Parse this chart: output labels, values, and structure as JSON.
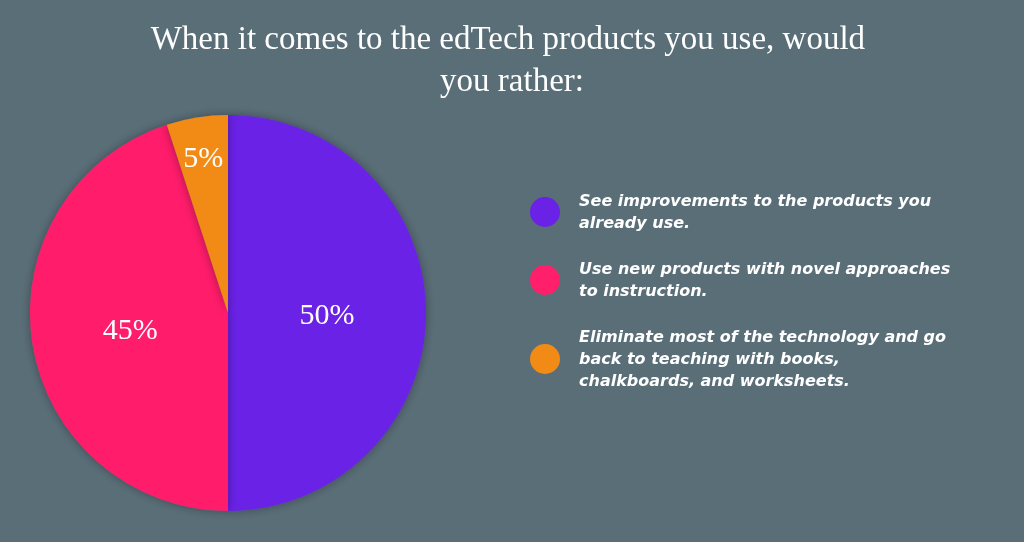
{
  "chart_data": {
    "type": "pie",
    "title": "When it comes to the edTech products you use, would you rather:",
    "categories": [
      "See improvements to the products you already use.",
      "Use new products with novel approaches to instruction.",
      "Eliminate most of the technology and go back to teaching with books, chalkboards, and worksheets."
    ],
    "values": [
      50,
      45,
      5
    ],
    "value_labels": [
      "50%",
      "45%",
      "5%"
    ],
    "colors": [
      "#6a22e6",
      "#ff1f6b",
      "#f28b16"
    ],
    "legend": "right"
  }
}
